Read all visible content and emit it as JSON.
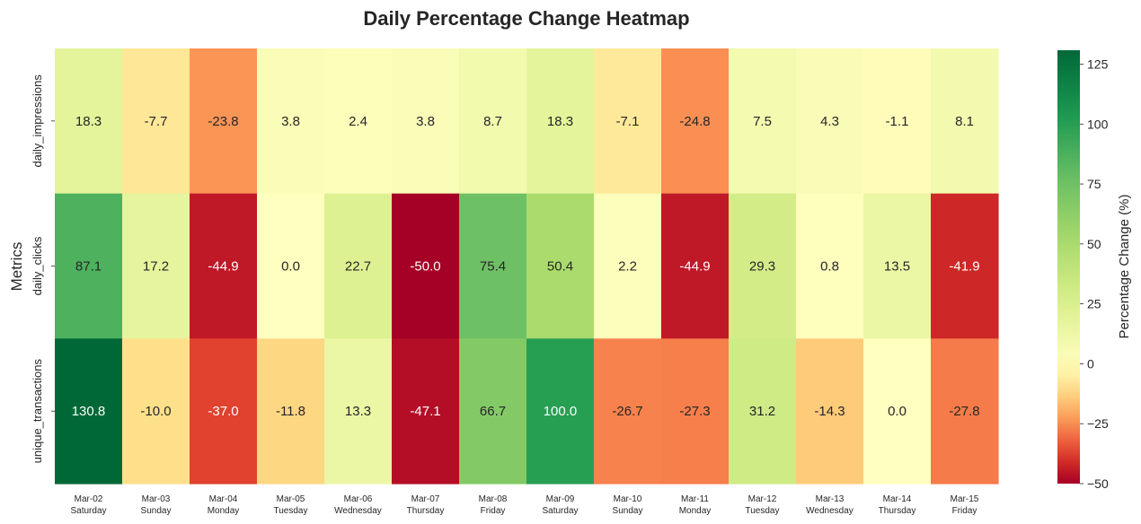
{
  "chart_data": {
    "type": "heatmap",
    "title": "Daily Percentage Change Heatmap",
    "ylabel": "Metrics",
    "xlabel": "",
    "rows": [
      "daily_impressions",
      "daily_clicks",
      "unique_transactions"
    ],
    "columns": [
      {
        "date": "Mar-02",
        "weekday": "Saturday"
      },
      {
        "date": "Mar-03",
        "weekday": "Sunday"
      },
      {
        "date": "Mar-04",
        "weekday": "Monday"
      },
      {
        "date": "Mar-05",
        "weekday": "Tuesday"
      },
      {
        "date": "Mar-06",
        "weekday": "Wednesday"
      },
      {
        "date": "Mar-07",
        "weekday": "Thursday"
      },
      {
        "date": "Mar-08",
        "weekday": "Friday"
      },
      {
        "date": "Mar-09",
        "weekday": "Saturday"
      },
      {
        "date": "Mar-10",
        "weekday": "Sunday"
      },
      {
        "date": "Mar-11",
        "weekday": "Monday"
      },
      {
        "date": "Mar-12",
        "weekday": "Tuesday"
      },
      {
        "date": "Mar-13",
        "weekday": "Wednesday"
      },
      {
        "date": "Mar-14",
        "weekday": "Thursday"
      },
      {
        "date": "Mar-15",
        "weekday": "Friday"
      }
    ],
    "values": [
      [
        18.3,
        -7.7,
        -23.8,
        3.8,
        2.4,
        3.8,
        8.7,
        18.3,
        -7.1,
        -24.8,
        7.5,
        4.3,
        -1.1,
        8.1
      ],
      [
        87.1,
        17.2,
        -44.9,
        0.0,
        22.7,
        -50.0,
        75.4,
        50.4,
        2.2,
        -44.9,
        29.3,
        0.8,
        13.5,
        -41.9
      ],
      [
        130.8,
        -10.0,
        -37.0,
        -11.8,
        13.3,
        -47.1,
        66.7,
        100.0,
        -26.7,
        -27.3,
        31.2,
        -14.3,
        0.0,
        -27.8
      ]
    ],
    "colorbar": {
      "label": "Percentage Change (%)",
      "range": [
        -50,
        130.8
      ],
      "ticks": [
        -50,
        -25,
        0,
        25,
        50,
        75,
        100,
        125
      ],
      "colormap": "RdYlGn centered at 0"
    }
  }
}
